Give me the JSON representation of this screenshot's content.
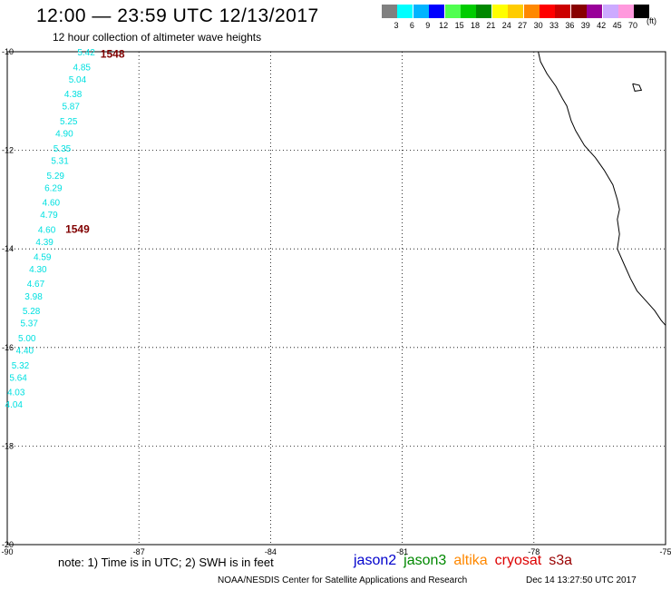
{
  "title": "12:00 — 23:59 UTC 12/13/2017",
  "subtitle": "12 hour collection of altimeter wave heights",
  "color_scale": {
    "unit": "(ft)",
    "bins": [
      {
        "label": "3",
        "color": "#808080"
      },
      {
        "label": "6",
        "color": "#00ffff"
      },
      {
        "label": "9",
        "color": "#00b4ff"
      },
      {
        "label": "12",
        "color": "#0000ff"
      },
      {
        "label": "15",
        "color": "#50ff50"
      },
      {
        "label": "18",
        "color": "#00cc00"
      },
      {
        "label": "21",
        "color": "#008800"
      },
      {
        "label": "24",
        "color": "#ffff00"
      },
      {
        "label": "27",
        "color": "#ffcc00"
      },
      {
        "label": "30",
        "color": "#ff8800"
      },
      {
        "label": "33",
        "color": "#ff0000"
      },
      {
        "label": "36",
        "color": "#cc0000"
      },
      {
        "label": "39",
        "color": "#880000"
      },
      {
        "label": "42",
        "color": "#990099"
      },
      {
        "label": "45",
        "color": "#ccaaff"
      },
      {
        "label": "70",
        "color": "#ff99dd"
      },
      {
        "label": "",
        "color": "#000000"
      }
    ]
  },
  "axes": {
    "lon_ticks": [
      "-90",
      "-87",
      "-84",
      "-81",
      "-78",
      "-75"
    ],
    "lat_ticks": [
      "-10",
      "-12",
      "-14",
      "-16",
      "-18",
      "-20"
    ]
  },
  "time_labels": [
    {
      "text": "1548",
      "lon": -87.6,
      "lat": -10.05,
      "color": "#800000"
    },
    {
      "text": "1549",
      "lon": -88.4,
      "lat": -13.6,
      "color": "#800000"
    }
  ],
  "wave_heights": {
    "color": "#00e0e0",
    "points": [
      {
        "value": "5.42",
        "lon": -88.2,
        "lat": -10.0
      },
      {
        "value": "4.85",
        "lon": -88.3,
        "lat": -10.3
      },
      {
        "value": "5.04",
        "lon": -88.4,
        "lat": -10.55
      },
      {
        "value": "4.38",
        "lon": -88.5,
        "lat": -10.85
      },
      {
        "value": "5.87",
        "lon": -88.55,
        "lat": -11.1
      },
      {
        "value": "5.25",
        "lon": -88.6,
        "lat": -11.4
      },
      {
        "value": "4.90",
        "lon": -88.7,
        "lat": -11.65
      },
      {
        "value": "5.35",
        "lon": -88.75,
        "lat": -11.95
      },
      {
        "value": "5.31",
        "lon": -88.8,
        "lat": -12.2
      },
      {
        "value": "5.29",
        "lon": -88.9,
        "lat": -12.5
      },
      {
        "value": "6.29",
        "lon": -88.95,
        "lat": -12.75
      },
      {
        "value": "4.60",
        "lon": -89.0,
        "lat": -13.05
      },
      {
        "value": "4.79",
        "lon": -89.05,
        "lat": -13.3
      },
      {
        "value": "4.60",
        "lon": -89.1,
        "lat": -13.6
      },
      {
        "value": "4.39",
        "lon": -89.15,
        "lat": -13.85
      },
      {
        "value": "4.59",
        "lon": -89.2,
        "lat": -14.15
      },
      {
        "value": "4.30",
        "lon": -89.3,
        "lat": -14.4
      },
      {
        "value": "4.67",
        "lon": -89.35,
        "lat": -14.7
      },
      {
        "value": "3.98",
        "lon": -89.4,
        "lat": -14.95
      },
      {
        "value": "5.28",
        "lon": -89.45,
        "lat": -15.25
      },
      {
        "value": "5.37",
        "lon": -89.5,
        "lat": -15.5
      },
      {
        "value": "5.00",
        "lon": -89.55,
        "lat": -15.8
      },
      {
        "value": "4.40",
        "lon": -89.6,
        "lat": -16.05
      },
      {
        "value": "5.32",
        "lon": -89.7,
        "lat": -16.35
      },
      {
        "value": "5.64",
        "lon": -89.75,
        "lat": -16.6
      },
      {
        "value": "4.03",
        "lon": -89.8,
        "lat": -16.9
      },
      {
        "value": "4.04",
        "lon": -89.85,
        "lat": -17.15
      }
    ]
  },
  "coastline": {
    "main": [
      [
        -77.9,
        -10.0
      ],
      [
        -77.85,
        -10.2
      ],
      [
        -77.7,
        -10.45
      ],
      [
        -77.5,
        -10.7
      ],
      [
        -77.35,
        -10.95
      ],
      [
        -77.25,
        -11.1
      ],
      [
        -77.15,
        -11.4
      ],
      [
        -77.05,
        -11.6
      ],
      [
        -76.85,
        -11.9
      ],
      [
        -76.6,
        -12.15
      ],
      [
        -76.4,
        -12.4
      ],
      [
        -76.2,
        -12.7
      ],
      [
        -76.1,
        -13.0
      ],
      [
        -76.05,
        -13.2
      ],
      [
        -76.1,
        -13.4
      ],
      [
        -76.05,
        -13.7
      ],
      [
        -76.1,
        -14.0
      ],
      [
        -75.95,
        -14.3
      ],
      [
        -75.8,
        -14.6
      ],
      [
        -75.65,
        -14.85
      ],
      [
        -75.45,
        -15.05
      ],
      [
        -75.25,
        -15.25
      ],
      [
        -75.1,
        -15.45
      ],
      [
        -75.0,
        -15.55
      ]
    ],
    "island": [
      [
        -75.75,
        -10.65
      ],
      [
        -75.6,
        -10.68
      ],
      [
        -75.55,
        -10.78
      ],
      [
        -75.7,
        -10.8
      ],
      [
        -75.75,
        -10.65
      ]
    ]
  },
  "note": "note: 1) Time is in UTC; 2) SWH is in feet",
  "satellites": [
    {
      "name": "jason2",
      "color": "#0000cc"
    },
    {
      "name": "jason3",
      "color": "#008800"
    },
    {
      "name": "altika",
      "color": "#ff8800"
    },
    {
      "name": "cryosat",
      "color": "#dd0000"
    },
    {
      "name": "s3a",
      "color": "#990000"
    }
  ],
  "footer": {
    "center": "NOAA/NESDIS Center for Satellite Applications and Research",
    "timestamp": "Dec 14 13:27:50 UTC 2017"
  }
}
